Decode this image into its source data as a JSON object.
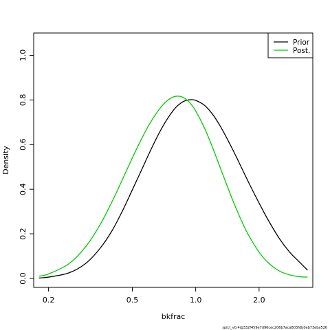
{
  "chart_data": {
    "type": "line",
    "xlabel": "bkfrac",
    "ylabel": "Density",
    "x_scale": "log",
    "xlim": [
      0.17,
      3.6
    ],
    "ylim": [
      -0.04,
      1.1
    ],
    "x_ticks": [
      0.2,
      0.5,
      1.0,
      2.0
    ],
    "x_tick_labels": [
      "0.2",
      "0.5",
      "1.0",
      "2.0"
    ],
    "y_ticks": [
      0.0,
      0.2,
      0.4,
      0.6,
      0.8,
      1.0
    ],
    "y_tick_labels": [
      "0.0",
      "0.2",
      "0.4",
      "0.6",
      "0.8",
      "1.0"
    ],
    "grid": false,
    "legend_position": "top-right",
    "series": [
      {
        "name": "Prior",
        "color": "#000000",
        "x": [
          0.18,
          0.2,
          0.25,
          0.3,
          0.35,
          0.4,
          0.45,
          0.5,
          0.55,
          0.6,
          0.65,
          0.7,
          0.75,
          0.8,
          0.85,
          0.9,
          0.95,
          1.0,
          1.1,
          1.2,
          1.3,
          1.4,
          1.5,
          1.6,
          1.7,
          1.8,
          2.0,
          2.2,
          2.5,
          2.8,
          3.1,
          3.4
        ],
        "y": [
          0.002,
          0.006,
          0.025,
          0.067,
          0.133,
          0.213,
          0.305,
          0.397,
          0.481,
          0.559,
          0.627,
          0.684,
          0.729,
          0.764,
          0.786,
          0.798,
          0.801,
          0.798,
          0.776,
          0.737,
          0.687,
          0.632,
          0.577,
          0.523,
          0.471,
          0.423,
          0.338,
          0.265,
          0.178,
          0.117,
          0.075,
          0.037
        ]
      },
      {
        "name": "Post.",
        "color": "#00cc00",
        "x": [
          0.18,
          0.2,
          0.25,
          0.3,
          0.35,
          0.4,
          0.45,
          0.5,
          0.55,
          0.6,
          0.65,
          0.7,
          0.75,
          0.8,
          0.85,
          0.9,
          0.95,
          1.0,
          1.1,
          1.2,
          1.3,
          1.4,
          1.5,
          1.6,
          1.7,
          1.8,
          2.0,
          2.2,
          2.5,
          2.8,
          3.1,
          3.4
        ],
        "y": [
          0.01,
          0.02,
          0.066,
          0.142,
          0.238,
          0.343,
          0.446,
          0.54,
          0.621,
          0.688,
          0.74,
          0.779,
          0.804,
          0.816,
          0.815,
          0.803,
          0.781,
          0.751,
          0.675,
          0.589,
          0.503,
          0.423,
          0.35,
          0.287,
          0.232,
          0.187,
          0.118,
          0.072,
          0.033,
          0.016,
          0.008,
          0.006
        ]
      }
    ]
  },
  "footnote": "spict_v0.4@332f459e7d96cec206b7aca803fdb0eb73eba526"
}
